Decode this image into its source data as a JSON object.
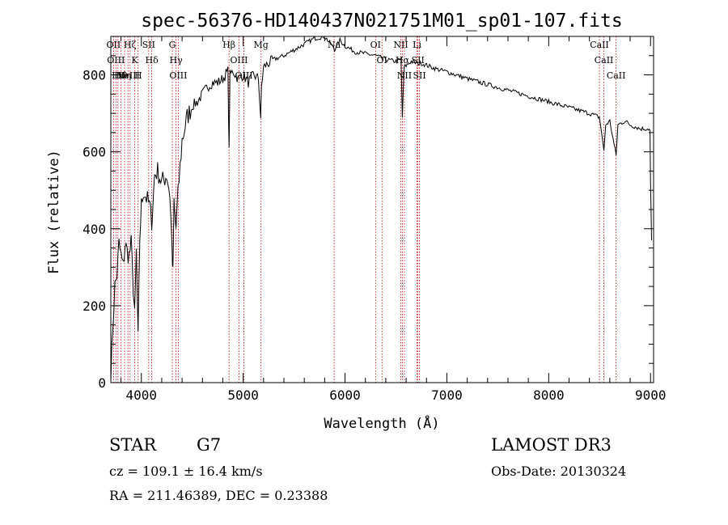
{
  "chart_data": {
    "type": "line",
    "title": "spec-56376-HD140437N021751M01_sp01-107.fits",
    "xlabel": "Wavelength (Å)",
    "ylabel": "Flux (relative)",
    "xlim": [
      3700,
      9030
    ],
    "ylim": [
      0,
      900
    ],
    "xticks": [
      4000,
      5000,
      6000,
      7000,
      8000,
      9000
    ],
    "yticks": [
      0,
      200,
      400,
      600,
      800
    ],
    "series": [
      {
        "name": "flux",
        "x": [
          3700,
          3720,
          3740,
          3760,
          3780,
          3800,
          3820,
          3840,
          3860,
          3880,
          3900,
          3920,
          3934,
          3950,
          3968,
          3985,
          4000,
          4020,
          4050,
          4080,
          4102,
          4130,
          4160,
          4200,
          4250,
          4280,
          4300,
          4310,
          4320,
          4330,
          4340,
          4360,
          4400,
          4450,
          4500,
          4550,
          4600,
          4650,
          4700,
          4750,
          4800,
          4850,
          4861,
          4870,
          4900,
          4950,
          5000,
          5050,
          5100,
          5150,
          5172,
          5180,
          5200,
          5250,
          5300,
          5400,
          5500,
          5600,
          5700,
          5800,
          5890,
          5896,
          5950,
          6000,
          6100,
          6200,
          6300,
          6400,
          6500,
          6550,
          6563,
          6580,
          6650,
          6700,
          6750,
          6800,
          6900,
          7000,
          7200,
          7400,
          7600,
          7800,
          8000,
          8200,
          8400,
          8498,
          8520,
          8542,
          8560,
          8600,
          8662,
          8680,
          8750,
          8800,
          8900,
          8980,
          8995,
          9000,
          9010
        ],
        "y": [
          10,
          150,
          250,
          280,
          360,
          330,
          300,
          360,
          340,
          330,
          360,
          250,
          170,
          340,
          110,
          380,
          460,
          500,
          480,
          460,
          420,
          540,
          550,
          520,
          540,
          490,
          360,
          280,
          460,
          430,
          400,
          490,
          630,
          690,
          720,
          730,
          750,
          770,
          780,
          780,
          790,
          810,
          600,
          800,
          810,
          790,
          800,
          780,
          800,
          790,
          690,
          770,
          820,
          830,
          840,
          850,
          865,
          880,
          895,
          900,
          870,
          865,
          890,
          875,
          860,
          855,
          850,
          840,
          835,
          840,
          690,
          820,
          835,
          830,
          830,
          825,
          815,
          808,
          790,
          775,
          760,
          745,
          730,
          715,
          700,
          690,
          650,
          600,
          670,
          680,
          590,
          670,
          680,
          670,
          660,
          660,
          655,
          520,
          370
        ]
      }
    ],
    "line_markers": [
      {
        "wl": 3727,
        "label": "OII"
      },
      {
        "wl": 3750,
        "label": "OIII"
      },
      {
        "wl": 3770,
        "label": "Hε"
      },
      {
        "wl": 3798,
        "label": "Hθ"
      },
      {
        "wl": 3835,
        "label": "Hη"
      },
      {
        "wl": 3869,
        "label": "NeIII"
      },
      {
        "wl": 3889,
        "label": "Hζ"
      },
      {
        "wl": 3934,
        "label": "K"
      },
      {
        "wl": 3968,
        "label": "H"
      },
      {
        "wl": 4072,
        "label": "SII"
      },
      {
        "wl": 4102,
        "label": "Hδ"
      },
      {
        "wl": 4304,
        "label": "G"
      },
      {
        "wl": 4340,
        "label": "Hγ"
      },
      {
        "wl": 4363,
        "label": "OIII"
      },
      {
        "wl": 4861,
        "label": "Hβ"
      },
      {
        "wl": 4959,
        "label": "OIII"
      },
      {
        "wl": 5007,
        "label": "OIII"
      },
      {
        "wl": 5175,
        "label": "Mg"
      },
      {
        "wl": 5893,
        "label": "Na"
      },
      {
        "wl": 6300,
        "label": "OI"
      },
      {
        "wl": 6363,
        "label": "OI"
      },
      {
        "wl": 6548,
        "label": "NII"
      },
      {
        "wl": 6563,
        "label": "Hα"
      },
      {
        "wl": 6583,
        "label": "NII"
      },
      {
        "wl": 6707,
        "label": "Li"
      },
      {
        "wl": 6716,
        "label": "SII"
      },
      {
        "wl": 6731,
        "label": "SII"
      },
      {
        "wl": 8498,
        "label": "CaII"
      },
      {
        "wl": 8542,
        "label": "CaII"
      },
      {
        "wl": 8662,
        "label": "CaII"
      }
    ],
    "colors": {
      "line": "#000000",
      "marker": "#cc0000",
      "axes": "#000000"
    }
  },
  "info": {
    "object_class": "STAR",
    "subclass": "G7",
    "survey": "LAMOST DR3",
    "redshift": "cz = 109.1 ± 16.4 km/s",
    "obs_date": "Obs-Date: 20130324",
    "coords": "RA = 211.46389, DEC =    0.23388"
  }
}
